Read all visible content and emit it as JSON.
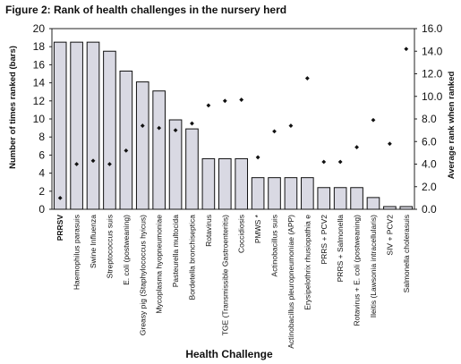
{
  "chart_data": {
    "type": "bar",
    "title": "Figure 2: Rank of health challenges in the nursery herd",
    "xlabel": "Health Challenge",
    "ylabel": "Number of times ranked (bars)",
    "y2label": "Average rank when ranked",
    "ylim": [
      0,
      20
    ],
    "y2lim": [
      0,
      16
    ],
    "yticks": [
      0,
      2,
      4,
      6,
      8,
      10,
      12,
      14,
      16,
      18,
      20
    ],
    "y2ticks": [
      "0.0",
      "2.0",
      "4.0",
      "6.0",
      "8.0",
      "10.0",
      "12.0",
      "14.0",
      "16.0"
    ],
    "categories": [
      "PRRSV",
      "Haemophilus parasuis",
      "Swine Influenza",
      "Streptococcus suis",
      "E. coli (postweaning)",
      "Greasy pig (Staphylococcus hyicus)",
      "Mycoplasma hyopneumoniae",
      "Pasteurella multocida",
      "Bordetella bronchiseptica",
      "Rotavirus",
      "TGE (Transmissible Gastroenteritis)",
      "Coccidiosis",
      "PMWS *",
      "Actinobacillus suis",
      "Actinobacillus pleuropneumoniae (APP)",
      "Erysipelothrix rhusiopathia e",
      "PRRS + PCV2",
      "PRRS + Salmonella",
      "Rotavirus + E. coli (postweaning)",
      "Ileitis (Lawsonia intracellularis)",
      "SIV + PCV2",
      "Salmonella cholerasuis"
    ],
    "series": [
      {
        "type": "bar",
        "axis": "left",
        "values": [
          18.5,
          18.5,
          18.5,
          17.5,
          15.3,
          14.1,
          13.1,
          9.9,
          8.9,
          5.6,
          5.6,
          5.6,
          3.5,
          3.5,
          3.5,
          3.5,
          2.4,
          2.4,
          2.4,
          1.3,
          0.3,
          0.3
        ]
      },
      {
        "type": "scatter",
        "axis": "right",
        "values": [
          1.0,
          4.0,
          4.3,
          4.0,
          5.2,
          7.4,
          7.2,
          7.0,
          7.6,
          9.2,
          9.6,
          9.7,
          4.6,
          6.9,
          7.4,
          11.6,
          4.2,
          4.2,
          5.5,
          7.9,
          5.8,
          14.2
        ]
      }
    ]
  }
}
